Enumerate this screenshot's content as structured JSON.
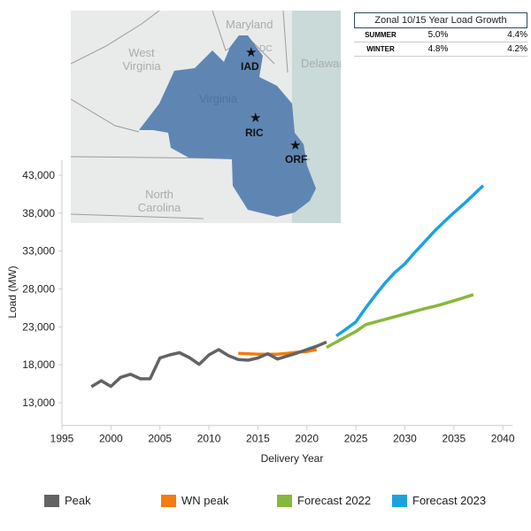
{
  "chart_data": {
    "type": "line",
    "xlabel": "Delivery Year",
    "ylabel": "Load (MW)",
    "xlim": [
      1993,
      2041
    ],
    "ylim": [
      10000,
      45000
    ],
    "xticks": [
      1995,
      2000,
      2005,
      2010,
      2015,
      2020,
      2025,
      2030,
      2035,
      2040
    ],
    "yticks": [
      13000,
      18000,
      23000,
      28000,
      33000,
      38000,
      43000
    ],
    "ytick_labels": [
      "13,000",
      "18,000",
      "23,000",
      "28,000",
      "33,000",
      "38,000",
      "43,000"
    ],
    "grid": false,
    "legend_placement": "bottom",
    "series": [
      {
        "name": "Peak",
        "color": "#636363",
        "x": [
          1998,
          1999,
          2000,
          2001,
          2002,
          2003,
          2004,
          2005,
          2006,
          2007,
          2008,
          2009,
          2010,
          2011,
          2012,
          2013,
          2014,
          2015,
          2016,
          2017,
          2018,
          2019,
          2020,
          2021,
          2022
        ],
        "y": [
          15100,
          15900,
          15150,
          16350,
          16750,
          16150,
          16150,
          18900,
          19300,
          19600,
          18950,
          18050,
          19300,
          20000,
          19200,
          18700,
          18600,
          18900,
          19450,
          18750,
          19150,
          19550,
          20000,
          20450,
          21000
        ]
      },
      {
        "name": "WN peak",
        "color": "#f47c10",
        "x": [
          2013,
          2014,
          2015,
          2016,
          2017,
          2018,
          2019,
          2020,
          2021
        ],
        "y": [
          19500,
          19450,
          19400,
          19400,
          19400,
          19500,
          19650,
          19750,
          20000
        ]
      },
      {
        "name": "Forecast 2022",
        "color": "#86b83c",
        "x": [
          2022,
          2023,
          2024,
          2025,
          2026,
          2027,
          2028,
          2029,
          2030,
          2031,
          2032,
          2033,
          2034,
          2035,
          2036,
          2037
        ],
        "y": [
          20300,
          21000,
          21700,
          22400,
          23300,
          23650,
          24000,
          24350,
          24700,
          25050,
          25400,
          25700,
          26050,
          26450,
          26850,
          27250
        ]
      },
      {
        "name": "Forecast 2023",
        "color": "#1aa3e0",
        "x": [
          2023,
          2024,
          2025,
          2026,
          2027,
          2028,
          2029,
          2030,
          2031,
          2032,
          2033,
          2034,
          2035,
          2036,
          2037,
          2038
        ],
        "y": [
          21800,
          22700,
          23650,
          25500,
          27200,
          28800,
          30200,
          31300,
          32800,
          34200,
          35600,
          36850,
          38050,
          39200,
          40400,
          41650
        ]
      }
    ]
  },
  "map": {
    "region_color": "#5f86b3",
    "labels": [
      "Maryland",
      "DC",
      "Delaware",
      "West",
      "Virginia",
      "Virginia",
      "North",
      "Carolina"
    ],
    "cities": [
      {
        "code": "IAD",
        "icon": "star-icon"
      },
      {
        "code": "RIC",
        "icon": "star-icon"
      },
      {
        "code": "ORF",
        "icon": "star-icon"
      }
    ]
  },
  "growth_table": {
    "title": "Zonal 10/15 Year Load Growth",
    "rows": [
      {
        "label": "SUMMER",
        "v10": "5.0%",
        "v15": "4.4%"
      },
      {
        "label": "WINTER",
        "v10": "4.8%",
        "v15": "4.2%"
      }
    ]
  }
}
